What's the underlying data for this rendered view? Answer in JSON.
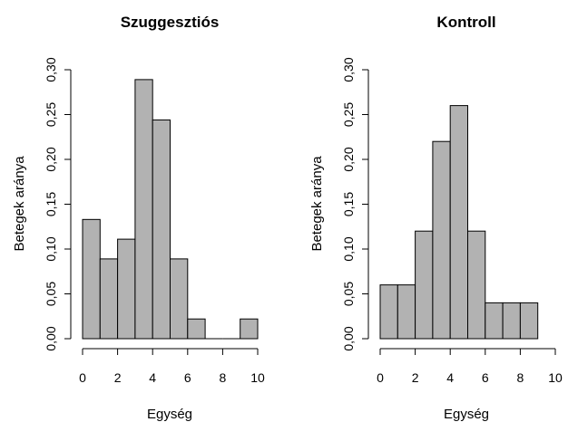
{
  "chart_data": [
    {
      "type": "bar",
      "title": "Szuggesztiós",
      "xlabel": "Egység",
      "ylabel": "Betegek aránya",
      "bin_edges": [
        0,
        1,
        2,
        3,
        4,
        5,
        6,
        7,
        8,
        9,
        10
      ],
      "values": [
        0.133,
        0.089,
        0.111,
        0.289,
        0.244,
        0.089,
        0.022,
        0,
        0,
        0.022
      ],
      "xlim": [
        0,
        10
      ],
      "ylim": [
        0,
        0.3
      ],
      "x_ticks": [
        0,
        2,
        4,
        6,
        8,
        10
      ],
      "x_tick_labels": [
        "0",
        "2",
        "4",
        "6",
        "8",
        "10"
      ],
      "y_ticks": [
        0,
        0.05,
        0.1,
        0.15,
        0.2,
        0.25,
        0.3
      ],
      "y_tick_labels": [
        "0,00",
        "0,05",
        "0,10",
        "0,15",
        "0,20",
        "0,25",
        "0,30"
      ],
      "bar_color": "#b2b2b2",
      "grid": false
    },
    {
      "type": "bar",
      "title": "Kontroll",
      "xlabel": "Egység",
      "ylabel": "Betegek aránya",
      "bin_edges": [
        0,
        1,
        2,
        3,
        4,
        5,
        6,
        7,
        8,
        9
      ],
      "values": [
        0.06,
        0.06,
        0.12,
        0.22,
        0.26,
        0.12,
        0.04,
        0.04,
        0.04
      ],
      "xlim": [
        0,
        10
      ],
      "ylim": [
        0,
        0.3
      ],
      "x_ticks": [
        0,
        2,
        4,
        6,
        8,
        10
      ],
      "x_tick_labels": [
        "0",
        "2",
        "4",
        "6",
        "8",
        "10"
      ],
      "y_ticks": [
        0,
        0.05,
        0.1,
        0.15,
        0.2,
        0.25,
        0.3
      ],
      "y_tick_labels": [
        "0,00",
        "0,05",
        "0,10",
        "0,15",
        "0,20",
        "0,25",
        "0,30"
      ],
      "bar_color": "#b2b2b2",
      "grid": false
    }
  ]
}
